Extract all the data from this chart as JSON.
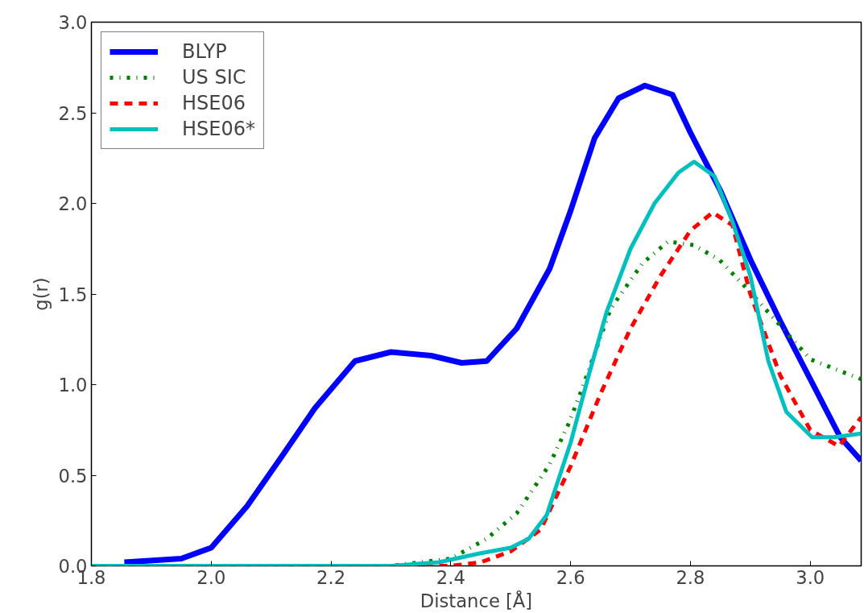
{
  "chart_data": {
    "type": "line",
    "xlabel": "Distance [Å]",
    "ylabel": "g(r)",
    "xlim": [
      1.8,
      3.085
    ],
    "ylim": [
      0,
      3.0
    ],
    "xticks": [
      {
        "value": 1.8,
        "label": "1.8"
      },
      {
        "value": 2.0,
        "label": "2.0"
      },
      {
        "value": 2.2,
        "label": "2.2"
      },
      {
        "value": 2.4,
        "label": "2.4"
      },
      {
        "value": 2.6,
        "label": "2.6"
      },
      {
        "value": 2.8,
        "label": "2.8"
      },
      {
        "value": 3.0,
        "label": "3.0"
      }
    ],
    "yticks": [
      {
        "value": 0,
        "label": "0.0"
      },
      0.5,
      {
        "value": 1,
        "label": "1.0"
      },
      1.5,
      {
        "value": 2,
        "label": "2.0"
      },
      2.5,
      {
        "value": 3,
        "label": "3.0"
      }
    ],
    "grid": false,
    "legend": "top left",
    "marker": "none",
    "series": [
      {
        "name": "BLYP",
        "color": "#0000ff",
        "line_style": "solid",
        "x": [
          1.855,
          1.95,
          2.0,
          2.06,
          2.117,
          2.173,
          2.24,
          2.3,
          2.367,
          2.418,
          2.46,
          2.51,
          2.565,
          2.6,
          2.64,
          2.68,
          2.724,
          2.77,
          2.8,
          2.85,
          2.9,
          2.95,
          3.0,
          3.05,
          3.085
        ],
        "values": [
          0.02,
          0.04,
          0.1,
          0.33,
          0.6,
          0.87,
          1.13,
          1.18,
          1.16,
          1.12,
          1.13,
          1.31,
          1.64,
          1.96,
          2.36,
          2.58,
          2.65,
          2.6,
          2.39,
          2.07,
          1.69,
          1.35,
          1.03,
          0.71,
          0.58
        ]
      },
      {
        "name": "US SIC",
        "color": "#008000",
        "line_style": "dotted",
        "x": [
          1.8,
          2.3,
          2.4,
          2.46,
          2.51,
          2.565,
          2.596,
          2.616,
          2.667,
          2.72,
          2.763,
          2.805,
          2.848,
          2.9,
          3.0,
          3.085
        ],
        "values": [
          0.0,
          0.0,
          0.04,
          0.15,
          0.29,
          0.56,
          0.78,
          0.95,
          1.42,
          1.67,
          1.79,
          1.77,
          1.69,
          1.51,
          1.14,
          1.03
        ]
      },
      {
        "name": "HSE06",
        "color": "#ff0000",
        "line_style": "dashed",
        "x": [
          1.8,
          2.4,
          2.45,
          2.5,
          2.55,
          2.6,
          2.65,
          2.7,
          2.75,
          2.8,
          2.837,
          2.87,
          2.9,
          2.95,
          3.0,
          3.048,
          3.085
        ],
        "values": [
          0.0,
          0.0,
          0.02,
          0.08,
          0.2,
          0.55,
          0.95,
          1.31,
          1.6,
          1.85,
          1.95,
          1.88,
          1.5,
          1.05,
          0.75,
          0.66,
          0.82
        ]
      },
      {
        "name": "HSE06*",
        "color": "#00bfbf",
        "line_style": "solid",
        "x": [
          1.8,
          2.3,
          2.38,
          2.45,
          2.5,
          2.53,
          2.56,
          2.6,
          2.63,
          2.66,
          2.7,
          2.74,
          2.78,
          2.806,
          2.84,
          2.87,
          2.9,
          2.93,
          2.96,
          3.003,
          3.04,
          3.085
        ],
        "values": [
          0.0,
          0.0,
          0.02,
          0.07,
          0.1,
          0.15,
          0.28,
          0.68,
          1.05,
          1.4,
          1.75,
          2.0,
          2.17,
          2.23,
          2.15,
          1.9,
          1.6,
          1.13,
          0.85,
          0.71,
          0.71,
          0.73
        ]
      }
    ]
  }
}
